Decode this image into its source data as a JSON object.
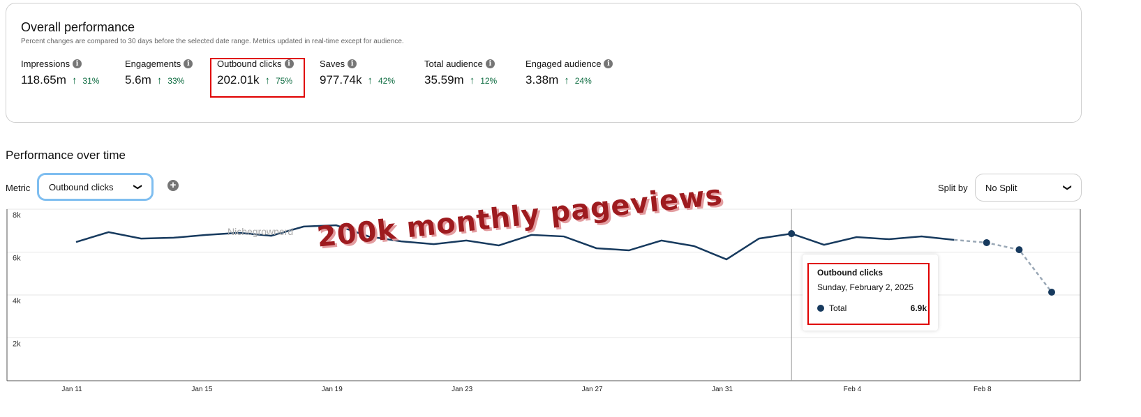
{
  "overall": {
    "title": "Overall performance",
    "subtitle": "Percent changes are compared to 30 days before the selected date range. Metrics updated in real-time except for audience.",
    "metrics": [
      {
        "label": "Impressions",
        "value": "118.65m",
        "change": "31%"
      },
      {
        "label": "Engagements",
        "value": "5.6m",
        "change": "33%"
      },
      {
        "label": "Outbound clicks",
        "value": "202.01k",
        "change": "75%"
      },
      {
        "label": "Saves",
        "value": "977.74k",
        "change": "42%"
      },
      {
        "label": "Total audience",
        "value": "35.59m",
        "change": "12%"
      },
      {
        "label": "Engaged audience",
        "value": "3.38m",
        "change": "24%"
      }
    ]
  },
  "over_time": {
    "title": "Performance over time",
    "metric_label": "Metric",
    "metric_value": "Outbound clicks",
    "split_label": "Split by",
    "split_value": "No Split"
  },
  "tooltip": {
    "title": "Outbound clicks",
    "date": "Sunday, February 2, 2025",
    "series": "Total",
    "value": "6.9k"
  },
  "overlay": {
    "annotation": "200k monthly pageviews",
    "watermark": "Nichegrownerd"
  },
  "colors": {
    "line": "#173a5e",
    "projected": "#9aa8b6",
    "positive": "#0a6a3e",
    "highlight": "#e00000"
  },
  "chart_data": {
    "type": "line",
    "title": "Outbound clicks",
    "y_ticks": [
      "2k",
      "4k",
      "6k",
      "8k"
    ],
    "ylim": [
      0,
      8000
    ],
    "x_tick_labels": [
      "Jan 11",
      "Jan 15",
      "Jan 19",
      "Jan 23",
      "Jan 27",
      "Jan 31",
      "Feb 4",
      "Feb 8"
    ],
    "x": [
      "Jan 11",
      "Jan 12",
      "Jan 13",
      "Jan 14",
      "Jan 15",
      "Jan 16",
      "Jan 17",
      "Jan 18",
      "Jan 19",
      "Jan 20",
      "Jan 21",
      "Jan 22",
      "Jan 23",
      "Jan 24",
      "Jan 25",
      "Jan 26",
      "Jan 27",
      "Jan 28",
      "Jan 29",
      "Jan 30",
      "Jan 31",
      "Feb 1",
      "Feb 2",
      "Feb 3",
      "Feb 4",
      "Feb 5",
      "Feb 6",
      "Feb 7",
      "Feb 8",
      "Feb 9",
      "Feb 10"
    ],
    "values": [
      6470,
      6930,
      6630,
      6670,
      6800,
      6900,
      6760,
      7190,
      7250,
      6730,
      6500,
      6370,
      6540,
      6310,
      6800,
      6730,
      6180,
      6080,
      6540,
      6280,
      5660,
      6630,
      6860,
      6340,
      6700,
      6600,
      6730,
      6570,
      6440,
      6110,
      4130
    ],
    "projected_from_index": 27,
    "highlight_index": 22
  }
}
